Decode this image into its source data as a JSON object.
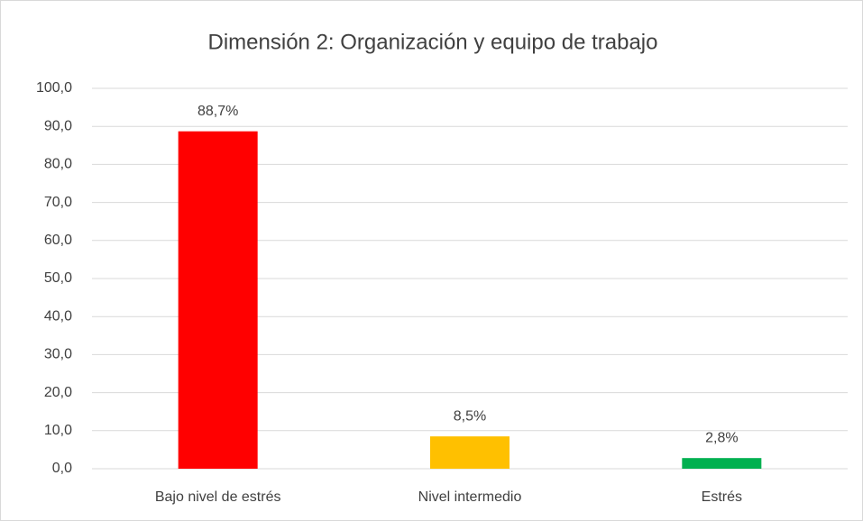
{
  "chart_data": {
    "type": "bar",
    "title": "Dimensión 2: Organización y equipo de trabajo",
    "categories": [
      "Bajo nivel de estrés",
      "Nivel intermedio",
      "Estrés"
    ],
    "values": [
      88.7,
      8.5,
      2.8
    ],
    "value_labels": [
      "88,7%",
      "8,5%",
      "2,8%"
    ],
    "colors": [
      "#ff0000",
      "#ffc000",
      "#00b050"
    ],
    "ylim": [
      0,
      100
    ],
    "yticks": [
      {
        "value": 0,
        "label": "0,0"
      },
      {
        "value": 10,
        "label": "10,0"
      },
      {
        "value": 20,
        "label": "20,0"
      },
      {
        "value": 30,
        "label": "30,0"
      },
      {
        "value": 40,
        "label": "40,0"
      },
      {
        "value": 50,
        "label": "50,0"
      },
      {
        "value": 60,
        "label": "60,0"
      },
      {
        "value": 70,
        "label": "70,0"
      },
      {
        "value": 80,
        "label": "80,0"
      },
      {
        "value": 90,
        "label": "90,0"
      },
      {
        "value": 100,
        "label": "100,0"
      }
    ],
    "grid": true
  }
}
